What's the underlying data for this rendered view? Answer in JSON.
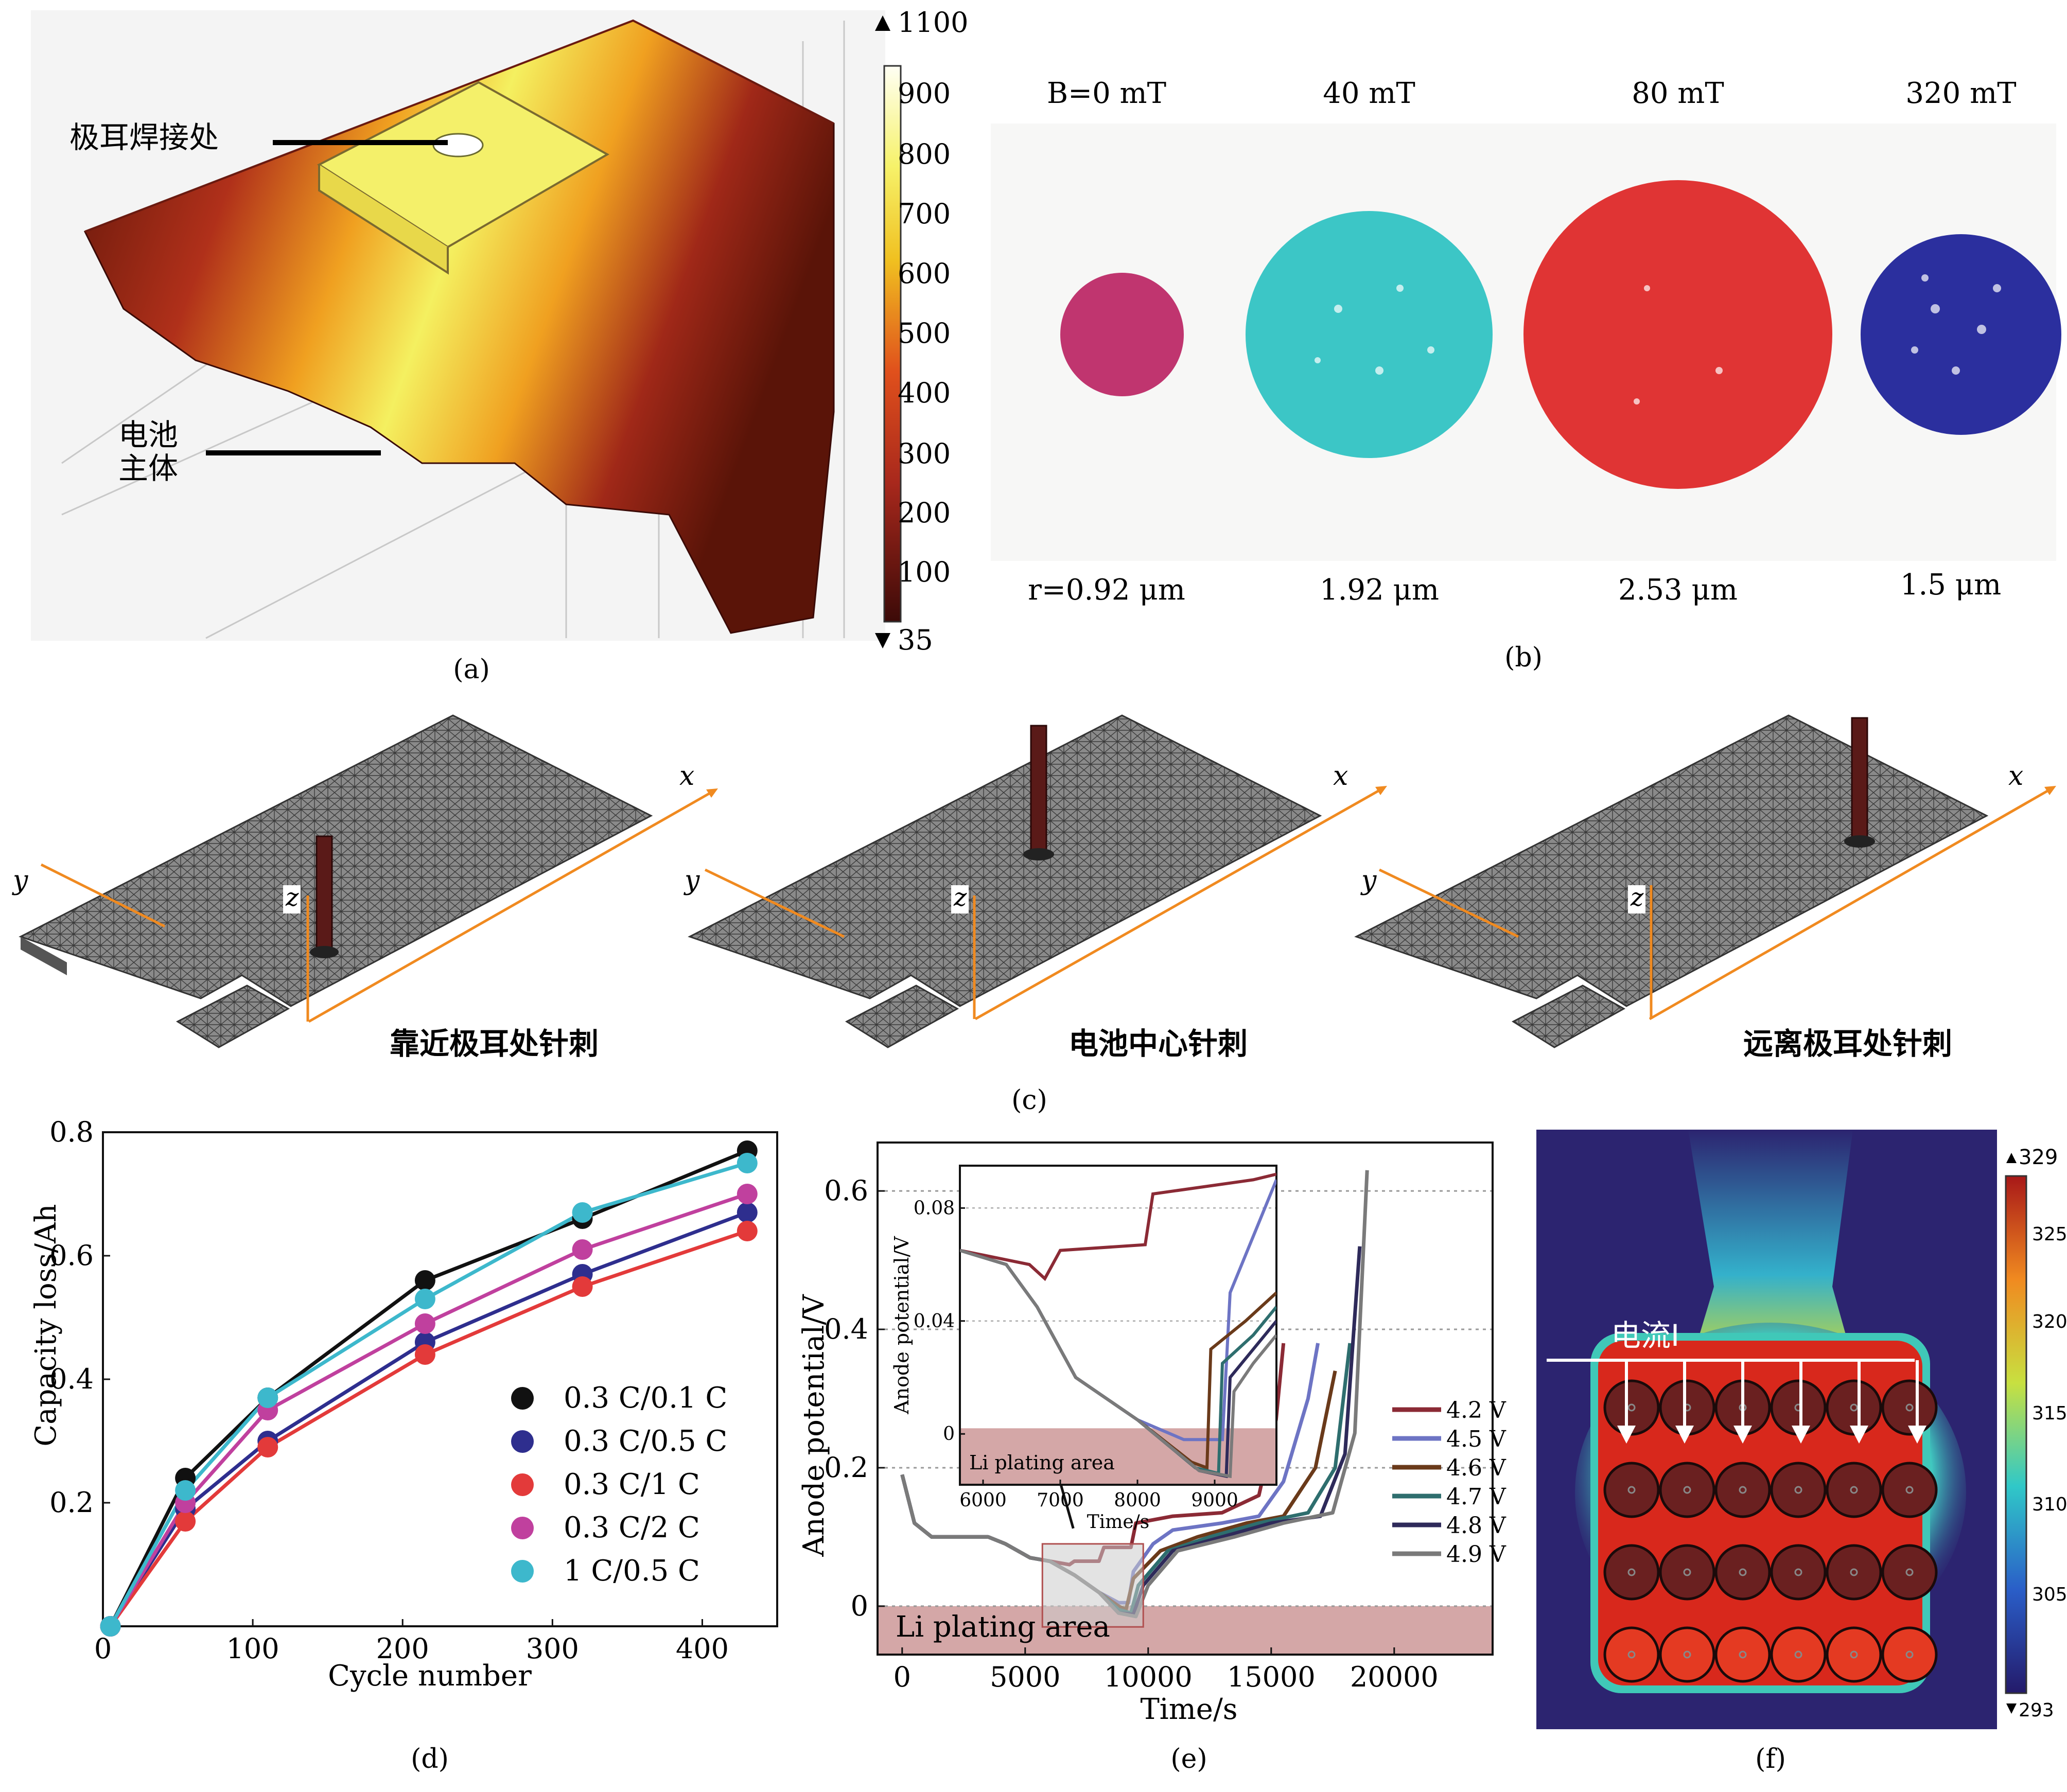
{
  "panels": {
    "a": {
      "caption": "(a)",
      "labels": {
        "tab_weld": "极耳焊接处",
        "body_line1": "电池",
        "body_line2": "主体"
      },
      "colorbar": {
        "max": "1100",
        "min": "35",
        "ticks": [
          "900",
          "800",
          "700",
          "600",
          "500",
          "400",
          "300",
          "200",
          "100"
        ]
      }
    },
    "b": {
      "caption": "(b)",
      "fields": [
        "B=0 mT",
        "40 mT",
        "80 mT",
        "320 mT"
      ],
      "radii": [
        "r=0.92 μm",
        "1.92 μm",
        "2.53 μm",
        "1.5 μm"
      ],
      "colors": [
        "#c0356f",
        "#3cc6c6",
        "#e03434",
        "#2b2f9e"
      ]
    },
    "c": {
      "caption": "(c)",
      "axes": {
        "x": "x",
        "y": "y",
        "z": "z"
      },
      "labels": [
        "靠近极耳处针刺",
        "电池中心针刺",
        "远离极耳处针刺"
      ]
    },
    "d": {
      "caption": "(d)"
    },
    "e": {
      "caption": "(e)",
      "region_label": "Li plating area",
      "inset": {
        "ylabel": "Anode potential/V",
        "xlabel": "Time/s",
        "xticks": [
          "6000",
          "7000",
          "8000",
          "9000"
        ],
        "yticks": [
          "0.08",
          "0.04",
          "0"
        ],
        "region_label": "Li plating area"
      }
    },
    "f": {
      "caption": "(f)",
      "current_label": "电流I",
      "colorbar": {
        "max": "329",
        "min": "293",
        "ticks": [
          "325",
          "320",
          "315",
          "310",
          "305"
        ]
      }
    }
  },
  "chart_data": [
    {
      "panel": "d",
      "type": "scatter",
      "xlabel": "Cycle number",
      "ylabel": "Capacity loss/Ah",
      "xlim": [
        0,
        450
      ],
      "ylim": [
        0,
        0.8
      ],
      "xticks": [
        0,
        100,
        200,
        300,
        400
      ],
      "yticks": [
        0.2,
        0.4,
        0.6,
        0.8
      ],
      "legend_position": "bottom-right",
      "x": [
        5,
        55,
        110,
        215,
        320,
        430
      ],
      "series": [
        {
          "name": "0.3 C/0.1 C",
          "color": "#111111",
          "values": [
            0.0,
            0.24,
            0.37,
            0.56,
            0.66,
            0.77
          ]
        },
        {
          "name": "0.3 C/0.5 C",
          "color": "#2e2e8e",
          "values": [
            0.0,
            0.19,
            0.3,
            0.46,
            0.57,
            0.67
          ]
        },
        {
          "name": "0.3 C/1 C",
          "color": "#e33a3a",
          "values": [
            0.0,
            0.17,
            0.29,
            0.44,
            0.55,
            0.64
          ]
        },
        {
          "name": "0.3 C/2 C",
          "color": "#c0409e",
          "values": [
            0.0,
            0.2,
            0.35,
            0.49,
            0.61,
            0.7
          ]
        },
        {
          "name": "1 C/0.5 C",
          "color": "#3db8cc",
          "values": [
            0.0,
            0.22,
            0.37,
            0.53,
            0.67,
            0.75
          ]
        }
      ]
    },
    {
      "panel": "e",
      "type": "line",
      "xlabel": "Time/s",
      "ylabel": "Anode potential/V",
      "xlim": [
        -1000,
        24000
      ],
      "ylim": [
        -0.07,
        0.67
      ],
      "xticks": [
        0,
        5000,
        10000,
        15000,
        20000
      ],
      "yticks": [
        0,
        0.2,
        0.4,
        0.6
      ],
      "legend_position": "middle-right",
      "series": [
        {
          "name": "4.2 V",
          "color": "#8b2a35",
          "points": [
            [
              0,
              0.19
            ],
            [
              500,
              0.12
            ],
            [
              1200,
              0.1
            ],
            [
              3500,
              0.1
            ],
            [
              4200,
              0.09
            ],
            [
              5200,
              0.07
            ],
            [
              6000,
              0.065
            ],
            [
              6800,
              0.06
            ],
            [
              7000,
              0.065
            ],
            [
              8000,
              0.065
            ],
            [
              8200,
              0.085
            ],
            [
              9300,
              0.085
            ],
            [
              9500,
              0.12
            ],
            [
              11000,
              0.13
            ],
            [
              13000,
              0.135
            ],
            [
              14500,
              0.16
            ],
            [
              15200,
              0.27
            ],
            [
              15500,
              0.38
            ]
          ]
        },
        {
          "name": "4.5 V",
          "color": "#6d74c4",
          "points": [
            [
              0,
              0.19
            ],
            [
              500,
              0.12
            ],
            [
              1200,
              0.1
            ],
            [
              3500,
              0.1
            ],
            [
              4200,
              0.09
            ],
            [
              5200,
              0.07
            ],
            [
              6000,
              0.065
            ],
            [
              7000,
              0.045
            ],
            [
              8000,
              0.02
            ],
            [
              8800,
              0.005
            ],
            [
              9200,
              0.005
            ],
            [
              9400,
              0.05
            ],
            [
              10200,
              0.09
            ],
            [
              11000,
              0.11
            ],
            [
              13000,
              0.12
            ],
            [
              14500,
              0.13
            ],
            [
              15500,
              0.18
            ],
            [
              16500,
              0.3
            ],
            [
              16900,
              0.38
            ]
          ]
        },
        {
          "name": "4.6 V",
          "color": "#6a3a1a",
          "points": [
            [
              0,
              0.19
            ],
            [
              500,
              0.12
            ],
            [
              1200,
              0.1
            ],
            [
              3500,
              0.1
            ],
            [
              4200,
              0.09
            ],
            [
              5200,
              0.07
            ],
            [
              6000,
              0.065
            ],
            [
              7000,
              0.045
            ],
            [
              8000,
              0.02
            ],
            [
              8800,
              0.0
            ],
            [
              9100,
              -0.005
            ],
            [
              9400,
              0.04
            ],
            [
              10500,
              0.08
            ],
            [
              12000,
              0.1
            ],
            [
              14000,
              0.12
            ],
            [
              15500,
              0.13
            ],
            [
              16800,
              0.2
            ],
            [
              17600,
              0.34
            ]
          ]
        },
        {
          "name": "4.7 V",
          "color": "#2e6e6e",
          "points": [
            [
              0,
              0.19
            ],
            [
              500,
              0.12
            ],
            [
              1200,
              0.1
            ],
            [
              3500,
              0.1
            ],
            [
              4200,
              0.09
            ],
            [
              5200,
              0.07
            ],
            [
              6000,
              0.065
            ],
            [
              7000,
              0.045
            ],
            [
              8000,
              0.02
            ],
            [
              8800,
              -0.005
            ],
            [
              9300,
              -0.01
            ],
            [
              9600,
              0.03
            ],
            [
              10800,
              0.08
            ],
            [
              12500,
              0.1
            ],
            [
              14500,
              0.12
            ],
            [
              16500,
              0.135
            ],
            [
              17600,
              0.2
            ],
            [
              18200,
              0.38
            ]
          ]
        },
        {
          "name": "4.8 V",
          "color": "#2e2a5a",
          "points": [
            [
              0,
              0.19
            ],
            [
              500,
              0.12
            ],
            [
              1200,
              0.1
            ],
            [
              3500,
              0.1
            ],
            [
              4200,
              0.09
            ],
            [
              5200,
              0.07
            ],
            [
              6000,
              0.065
            ],
            [
              7000,
              0.045
            ],
            [
              8000,
              0.02
            ],
            [
              8800,
              -0.01
            ],
            [
              9400,
              -0.012
            ],
            [
              9800,
              0.03
            ],
            [
              11000,
              0.08
            ],
            [
              13000,
              0.1
            ],
            [
              15000,
              0.12
            ],
            [
              17000,
              0.13
            ],
            [
              18000,
              0.22
            ],
            [
              18600,
              0.52
            ]
          ]
        },
        {
          "name": "4.9 V",
          "color": "#7a7a7a",
          "points": [
            [
              0,
              0.19
            ],
            [
              500,
              0.12
            ],
            [
              1200,
              0.1
            ],
            [
              3500,
              0.1
            ],
            [
              4200,
              0.09
            ],
            [
              5200,
              0.07
            ],
            [
              6000,
              0.065
            ],
            [
              7000,
              0.045
            ],
            [
              8000,
              0.02
            ],
            [
              8800,
              -0.01
            ],
            [
              9500,
              -0.015
            ],
            [
              10000,
              0.03
            ],
            [
              11200,
              0.08
            ],
            [
              13500,
              0.1
            ],
            [
              15500,
              0.12
            ],
            [
              17500,
              0.135
            ],
            [
              18400,
              0.25
            ],
            [
              18900,
              0.63
            ]
          ]
        }
      ]
    },
    {
      "panel": "e-inset",
      "type": "line",
      "xlabel": "Time/s",
      "ylabel": "Anode potential/V",
      "xlim": [
        5700,
        9800
      ],
      "ylim": [
        -0.018,
        0.095
      ],
      "xticks": [
        6000,
        7000,
        8000,
        9000
      ],
      "yticks": [
        0,
        0.04,
        0.08
      ],
      "series_ref": "e"
    }
  ]
}
